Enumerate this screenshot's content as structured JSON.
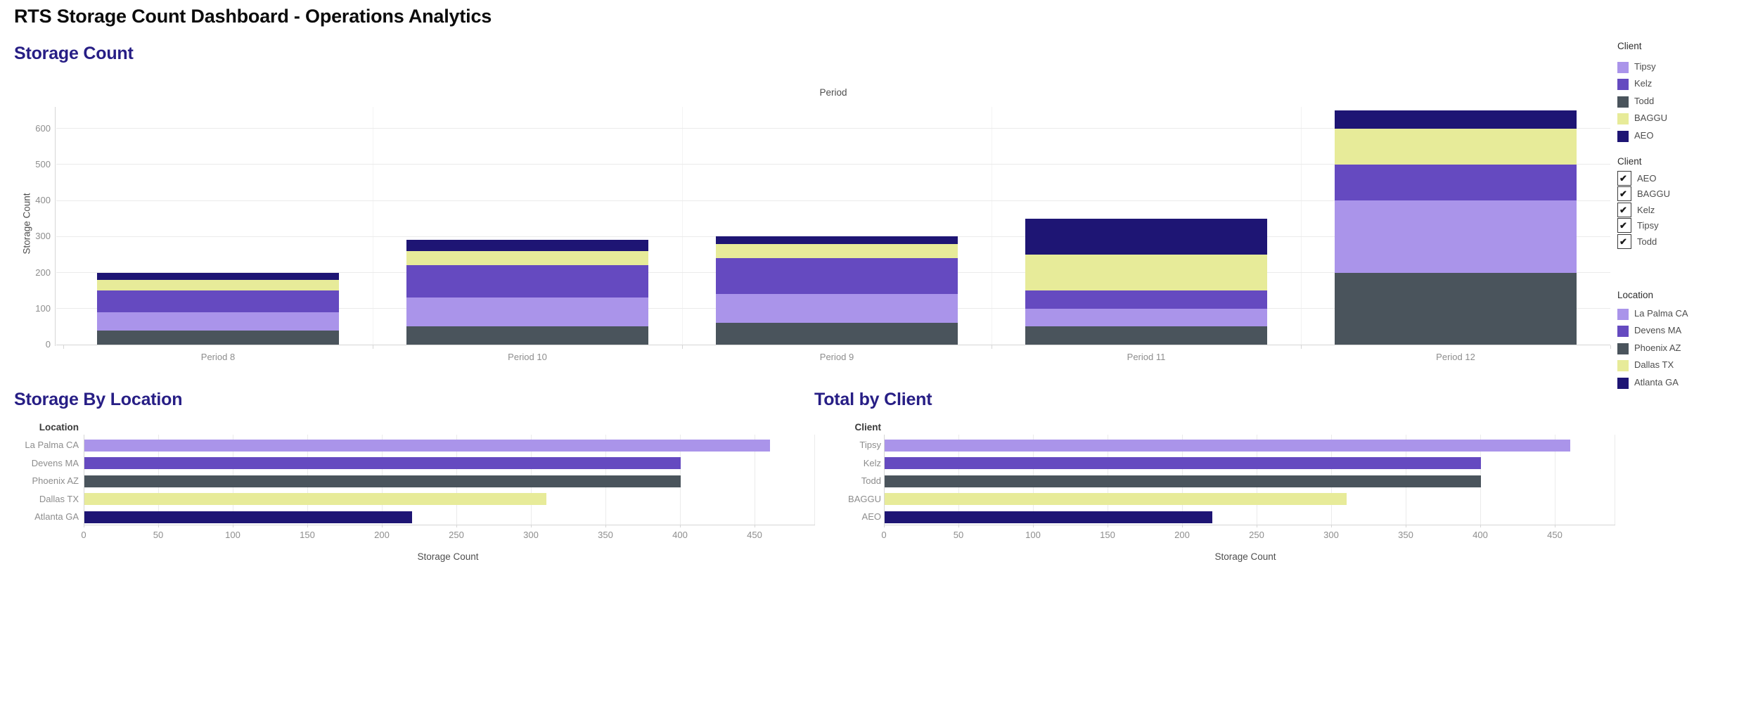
{
  "header": {
    "title": "RTS Storage Count Dashboard - Operations Analytics"
  },
  "colors": {
    "section_title": "#271e85",
    "series": {
      "Tipsy": "#aa94ea",
      "Kelz": "#654ac0",
      "Todd": "#4a545c",
      "BAGGU": "#e7eb99",
      "AEO": "#1e1574"
    }
  },
  "legends": {
    "client_color": {
      "title": "Client",
      "items": [
        {
          "label": "Tipsy",
          "color": "#aa94ea"
        },
        {
          "label": "Kelz",
          "color": "#654ac0"
        },
        {
          "label": "Todd",
          "color": "#4a545c"
        },
        {
          "label": "BAGGU",
          "color": "#e7eb99"
        },
        {
          "label": "AEO",
          "color": "#1e1574"
        }
      ]
    },
    "client_filter": {
      "title": "Client",
      "items": [
        {
          "label": "AEO",
          "checked": true
        },
        {
          "label": "BAGGU",
          "checked": true
        },
        {
          "label": "Kelz",
          "checked": true
        },
        {
          "label": "Tipsy",
          "checked": true
        },
        {
          "label": "Todd",
          "checked": true
        }
      ]
    },
    "location_color": {
      "title": "Location",
      "items": [
        {
          "label": "La Palma CA",
          "color": "#aa94ea"
        },
        {
          "label": "Devens MA",
          "color": "#654ac0"
        },
        {
          "label": "Phoenix AZ",
          "color": "#4a545c"
        },
        {
          "label": "Dallas TX",
          "color": "#e7eb99"
        },
        {
          "label": "Atlanta GA",
          "color": "#1e1574"
        }
      ]
    }
  },
  "chart_data": [
    {
      "name": "storage_count_by_period",
      "type": "bar",
      "stacked": true,
      "title": "Storage Count",
      "top_axis_label": "Period",
      "categories": [
        "Period 8",
        "Period 10",
        "Period 9",
        "Period 11",
        "Period 12"
      ],
      "series": [
        {
          "name": "Todd",
          "values": [
            40,
            50,
            60,
            50,
            200
          ]
        },
        {
          "name": "Tipsy",
          "values": [
            50,
            80,
            80,
            50,
            200
          ]
        },
        {
          "name": "Kelz",
          "values": [
            60,
            90,
            100,
            50,
            100
          ]
        },
        {
          "name": "BAGGU",
          "values": [
            30,
            40,
            40,
            100,
            100
          ]
        },
        {
          "name": "AEO",
          "values": [
            20,
            30,
            20,
            100,
            50
          ]
        }
      ],
      "stack_order_bottom_to_top": [
        "Todd",
        "Tipsy",
        "Kelz",
        "BAGGU",
        "AEO"
      ],
      "totals": [
        200,
        290,
        300,
        350,
        650
      ],
      "ylabel": "Storage Count",
      "ylim": [
        0,
        660
      ],
      "yticks": [
        0,
        100,
        200,
        300,
        400,
        500,
        600
      ],
      "grid": true,
      "legend_position": "right"
    },
    {
      "name": "storage_by_location",
      "type": "bar",
      "orientation": "horizontal",
      "title": "Storage By Location",
      "row_header": "Location",
      "categories": [
        "La Palma CA",
        "Devens MA",
        "Phoenix AZ",
        "Dallas TX",
        "Atlanta GA"
      ],
      "values": [
        460,
        400,
        400,
        310,
        220
      ],
      "bar_colors": [
        "#aa94ea",
        "#654ac0",
        "#4a545c",
        "#e7eb99",
        "#1e1574"
      ],
      "xlabel": "Storage Count",
      "xlim": [
        0,
        490
      ],
      "xticks": [
        0,
        50,
        100,
        150,
        200,
        250,
        300,
        350,
        400,
        450
      ],
      "grid": true
    },
    {
      "name": "total_by_client",
      "type": "bar",
      "orientation": "horizontal",
      "title": "Total by Client",
      "row_header": "Client",
      "categories": [
        "Tipsy",
        "Kelz",
        "Todd",
        "BAGGU",
        "AEO"
      ],
      "values": [
        460,
        400,
        400,
        310,
        220
      ],
      "bar_colors": [
        "#aa94ea",
        "#654ac0",
        "#4a545c",
        "#e7eb99",
        "#1e1574"
      ],
      "xlabel": "Storage Count",
      "xlim": [
        0,
        490
      ],
      "xticks": [
        0,
        50,
        100,
        150,
        200,
        250,
        300,
        350,
        400,
        450
      ],
      "grid": true
    }
  ]
}
